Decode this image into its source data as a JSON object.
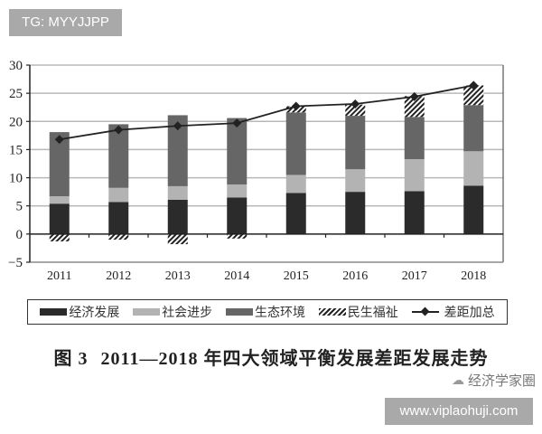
{
  "watermark_top": "TG: MYYJJPP",
  "watermark_bottom_url": "www.viplaohuji.com",
  "wechat_account": "经济学家圈",
  "caption": {
    "figure_label": "图 3",
    "title": "2011—2018 年四大领域平衡发展差距发展走势"
  },
  "legend": {
    "items": [
      {
        "label": "经济发展",
        "color": "#2b2b2b",
        "style": "solid"
      },
      {
        "label": "社会进步",
        "color": "#b3b3b3",
        "style": "solid"
      },
      {
        "label": "生态环境",
        "color": "#666666",
        "style": "solid"
      },
      {
        "label": "民生福祉",
        "color": "#222222",
        "style": "hatch"
      },
      {
        "label": "差距加总",
        "color": "#222222",
        "style": "line-diamond"
      }
    ]
  },
  "chart_data": {
    "type": "bar",
    "subtype": "stacked bar with line overlay",
    "title": "2011—2018 年四大领域平衡发展差距发展走势",
    "xlabel": "",
    "ylabel": "",
    "ylim": [
      -5,
      30
    ],
    "yticks": [
      -5,
      0,
      5,
      10,
      15,
      20,
      25,
      30
    ],
    "grid": true,
    "legend_position": "bottom",
    "categories": [
      "2011",
      "2012",
      "2013",
      "2014",
      "2015",
      "2016",
      "2017",
      "2018"
    ],
    "series": [
      {
        "name": "经济发展",
        "kind": "bar",
        "color": "#2b2b2b",
        "values": [
          5.4,
          5.7,
          6.1,
          6.5,
          7.3,
          7.5,
          7.6,
          8.6
        ]
      },
      {
        "name": "社会进步",
        "kind": "bar",
        "color": "#b3b3b3",
        "values": [
          1.3,
          2.5,
          2.4,
          2.3,
          3.2,
          4.0,
          5.7,
          6.1
        ]
      },
      {
        "name": "生态环境",
        "kind": "bar",
        "color": "#666666",
        "values": [
          11.4,
          11.3,
          12.6,
          11.8,
          11.1,
          9.5,
          7.5,
          8.2
        ]
      },
      {
        "name": "民生福祉",
        "kind": "bar",
        "pattern": "hatch",
        "values": [
          -1.3,
          -1.0,
          -1.8,
          -0.8,
          1.1,
          2.0,
          3.7,
          3.5
        ]
      },
      {
        "name": "差距加总",
        "kind": "line",
        "marker": "diamond",
        "color": "#222222",
        "values": [
          16.8,
          18.5,
          19.2,
          19.7,
          22.7,
          23.1,
          24.4,
          26.4
        ]
      }
    ]
  }
}
